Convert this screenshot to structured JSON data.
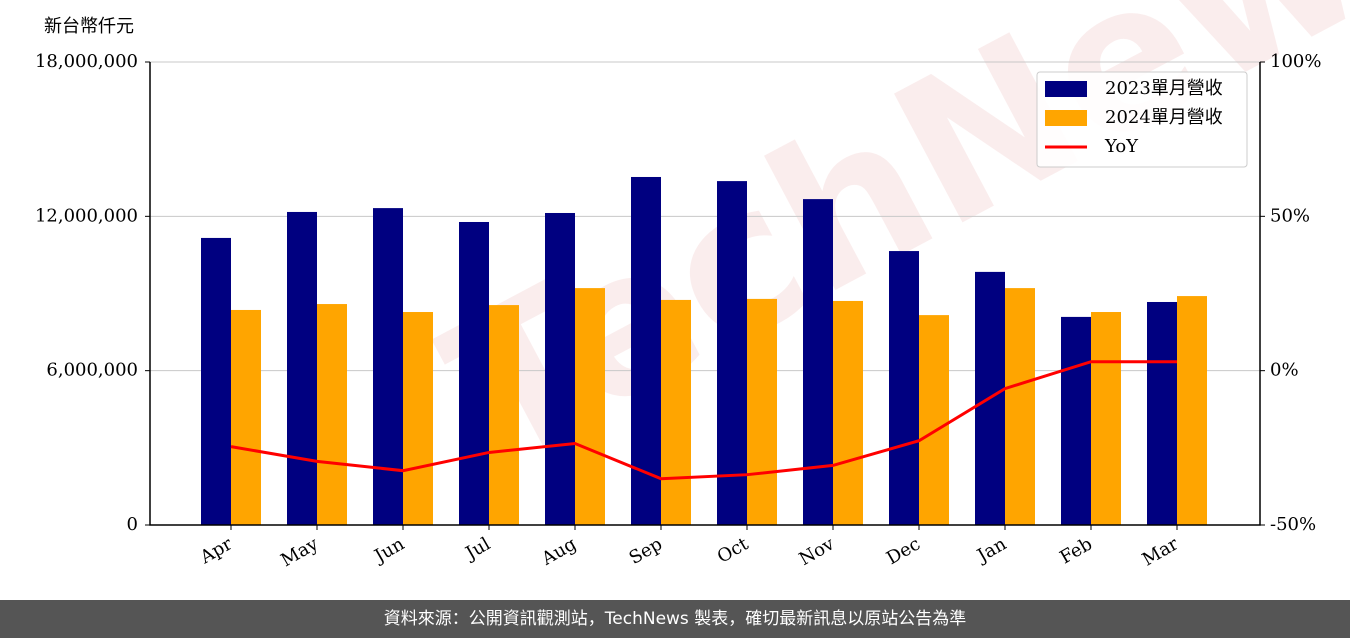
{
  "chart_data": {
    "type": "bar_line",
    "y_label": "新台幣仟元",
    "categories": [
      "Apr",
      "May",
      "Jun",
      "Jul",
      "Aug",
      "Sep",
      "Oct",
      "Nov",
      "Dec",
      "Jan",
      "Feb",
      "Mar"
    ],
    "series": [
      {
        "name": "2023單月營收",
        "color": "#000080",
        "type": "bar",
        "values": [
          11160000,
          12170000,
          12320000,
          11780000,
          12130000,
          13530000,
          13370000,
          12670000,
          10650000,
          9840000,
          8090000,
          8670000
        ]
      },
      {
        "name": "2024單月營收",
        "color": "#ffa500",
        "type": "bar",
        "values": [
          8360000,
          8590000,
          8280000,
          8550000,
          9210000,
          8750000,
          8790000,
          8710000,
          8160000,
          9210000,
          8280000,
          8900000
        ]
      },
      {
        "name": "YoY",
        "color": "#ff0000",
        "type": "line",
        "axis": "y2",
        "values": [
          -24.6,
          -29.4,
          -32.4,
          -26.5,
          -23.6,
          -35,
          -33.7,
          -30.7,
          -22.7,
          -5.8,
          2.9,
          2.9
        ]
      }
    ],
    "ylim": [
      0,
      18000000
    ],
    "yticks": [
      0,
      {
        "value": 6000000,
        "label": "6,000,000"
      },
      {
        "value": 12000000,
        "label": "12,000,000"
      },
      {
        "value": 18000000,
        "label": "18,000,000"
      }
    ],
    "y2lim": [
      -50,
      100
    ],
    "y2ticks": [
      {
        "value": -50,
        "label": "-50%"
      },
      {
        "value": 0,
        "label": "0%"
      },
      {
        "value": 50,
        "label": "50%"
      },
      {
        "value": 100,
        "label": "100%"
      }
    ],
    "grid": true,
    "legend": "upper right",
    "watermark": "TechNews",
    "footer": "資料來源：公開資訊觀測站，TechNews 製表，確切最新訊息以原站公告為準"
  }
}
